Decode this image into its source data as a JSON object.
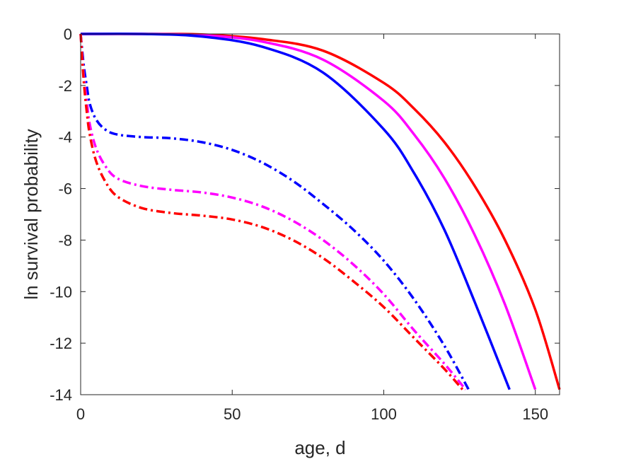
{
  "chart_data": {
    "type": "line",
    "title": "",
    "xlabel": "age, d",
    "ylabel": "ln survival probability",
    "xlim": [
      0,
      158
    ],
    "ylim": [
      -14,
      0
    ],
    "xticks": [
      0,
      50,
      100,
      150
    ],
    "xtick_labels": [
      "0",
      "50",
      "100",
      "150"
    ],
    "yticks": [
      0,
      -2,
      -4,
      -6,
      -8,
      -10,
      -12,
      -14
    ],
    "ytick_labels": [
      "0",
      "-2",
      "-4",
      "-6",
      "-8",
      "-10",
      "-12",
      "-14"
    ],
    "grid": false,
    "legend": "none",
    "series": [
      {
        "color": "#ff0000",
        "style": "solid",
        "x": [
          0,
          20,
          40,
          60,
          80,
          100,
          110,
          120,
          130,
          140,
          150,
          158
        ],
        "y": [
          0,
          0,
          -0.02,
          -0.2,
          -0.65,
          -1.9,
          -2.9,
          -4.2,
          -5.9,
          -8.0,
          -10.7,
          -13.8
        ]
      },
      {
        "color": "#ff00ff",
        "style": "solid",
        "x": [
          0,
          20,
          40,
          60,
          80,
          100,
          110,
          120,
          130,
          140,
          150
        ],
        "y": [
          0,
          0,
          -0.05,
          -0.3,
          -1.0,
          -2.6,
          -3.9,
          -5.6,
          -7.8,
          -10.5,
          -13.8
        ]
      },
      {
        "color": "#0000ff",
        "style": "solid",
        "x": [
          0,
          20,
          40,
          60,
          80,
          100,
          110,
          120,
          130,
          141.5
        ],
        "y": [
          0,
          0,
          -0.1,
          -0.5,
          -1.5,
          -3.7,
          -5.4,
          -7.6,
          -10.4,
          -13.8
        ]
      },
      {
        "color": "#0000ff",
        "style": "dashdot",
        "x": [
          0,
          1,
          2,
          3,
          5,
          8,
          12,
          20,
          30,
          40,
          50,
          60,
          70,
          80,
          90,
          100,
          110,
          120,
          128
        ],
        "y": [
          0,
          -1.2,
          -2.0,
          -2.7,
          -3.3,
          -3.7,
          -3.9,
          -4.0,
          -4.05,
          -4.2,
          -4.5,
          -5.0,
          -5.7,
          -6.6,
          -7.6,
          -8.8,
          -10.3,
          -12.1,
          -13.8
        ]
      },
      {
        "color": "#ff00ff",
        "style": "dashdot",
        "x": [
          0,
          1,
          2,
          3,
          5,
          8,
          12,
          20,
          30,
          40,
          50,
          60,
          70,
          80,
          90,
          100,
          110,
          120,
          127
        ],
        "y": [
          0,
          -1.6,
          -2.6,
          -3.5,
          -4.4,
          -5.1,
          -5.6,
          -5.9,
          -6.05,
          -6.15,
          -6.35,
          -6.7,
          -7.25,
          -8.0,
          -8.95,
          -10.1,
          -11.5,
          -12.8,
          -13.8
        ]
      },
      {
        "color": "#ff0000",
        "style": "dashdot",
        "x": [
          0,
          1,
          2,
          3,
          5,
          8,
          12,
          20,
          30,
          40,
          50,
          60,
          70,
          80,
          90,
          100,
          110,
          120,
          126
        ],
        "y": [
          0,
          -1.8,
          -3.0,
          -3.9,
          -4.9,
          -5.7,
          -6.3,
          -6.75,
          -6.95,
          -7.05,
          -7.2,
          -7.5,
          -8.0,
          -8.7,
          -9.6,
          -10.6,
          -11.8,
          -13.0,
          -13.8
        ]
      }
    ]
  }
}
